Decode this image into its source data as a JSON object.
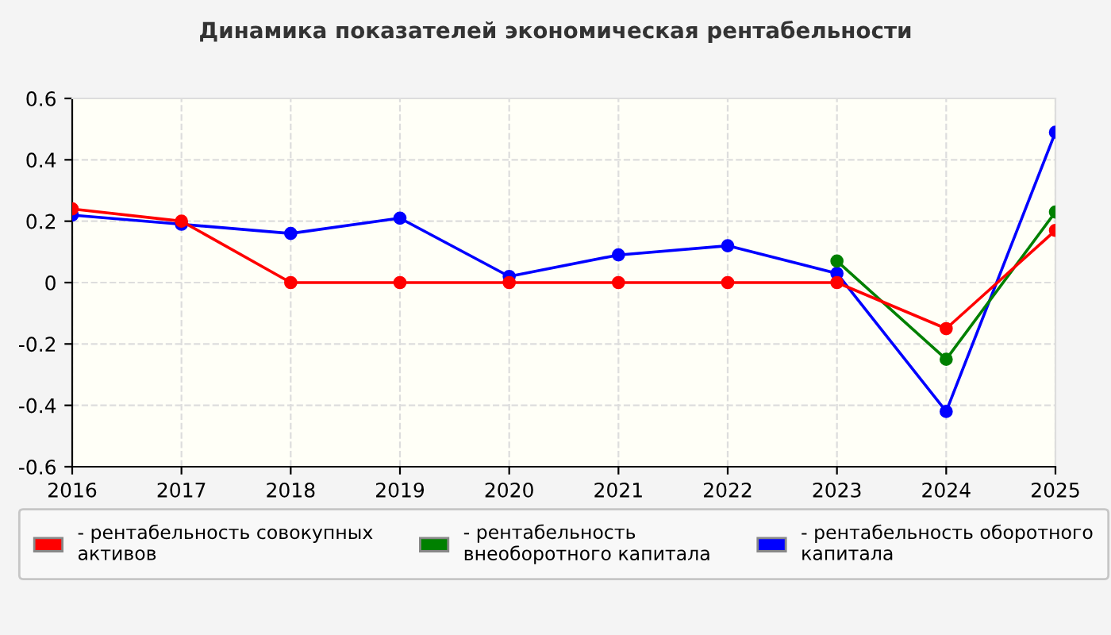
{
  "chart_data": {
    "type": "line",
    "title": "Динамика показателей экономическая рентабельности",
    "x": [
      2016,
      2017,
      2018,
      2019,
      2020,
      2021,
      2022,
      2023,
      2024,
      2025
    ],
    "series": [
      {
        "name": "- рентабельность совокупных\nактивов",
        "color": "#ff0000",
        "values": [
          0.24,
          0.2,
          0,
          0,
          0,
          0,
          0,
          0,
          -0.15,
          0.17
        ]
      },
      {
        "name": "- рентабельность\nвнеоборотного капитала",
        "color": "#008000",
        "values": [
          null,
          null,
          null,
          null,
          null,
          null,
          null,
          0.07,
          -0.25,
          0.23
        ]
      },
      {
        "name": "- рентабельность оборотного\nкапитала",
        "color": "#0000ff",
        "values": [
          0.22,
          0.19,
          0.16,
          0.21,
          0.02,
          0.09,
          0.12,
          0.03,
          -0.42,
          0.49
        ]
      }
    ],
    "xlim": [
      2016,
      2025
    ],
    "xticks": [
      2016,
      2017,
      2018,
      2019,
      2020,
      2021,
      2022,
      2023,
      2024,
      2025
    ],
    "ylim": [
      -0.6,
      0.6
    ],
    "yticks": [
      {
        "value": -0.6,
        "label": "-0.6"
      },
      {
        "value": -0.4,
        "label": "-0.4"
      },
      {
        "value": -0.2,
        "label": "-0.2"
      },
      0,
      0.2,
      0.4,
      0.6
    ],
    "grid": true,
    "legend": "bottom",
    "marker": "circle",
    "line_style": "solid"
  }
}
